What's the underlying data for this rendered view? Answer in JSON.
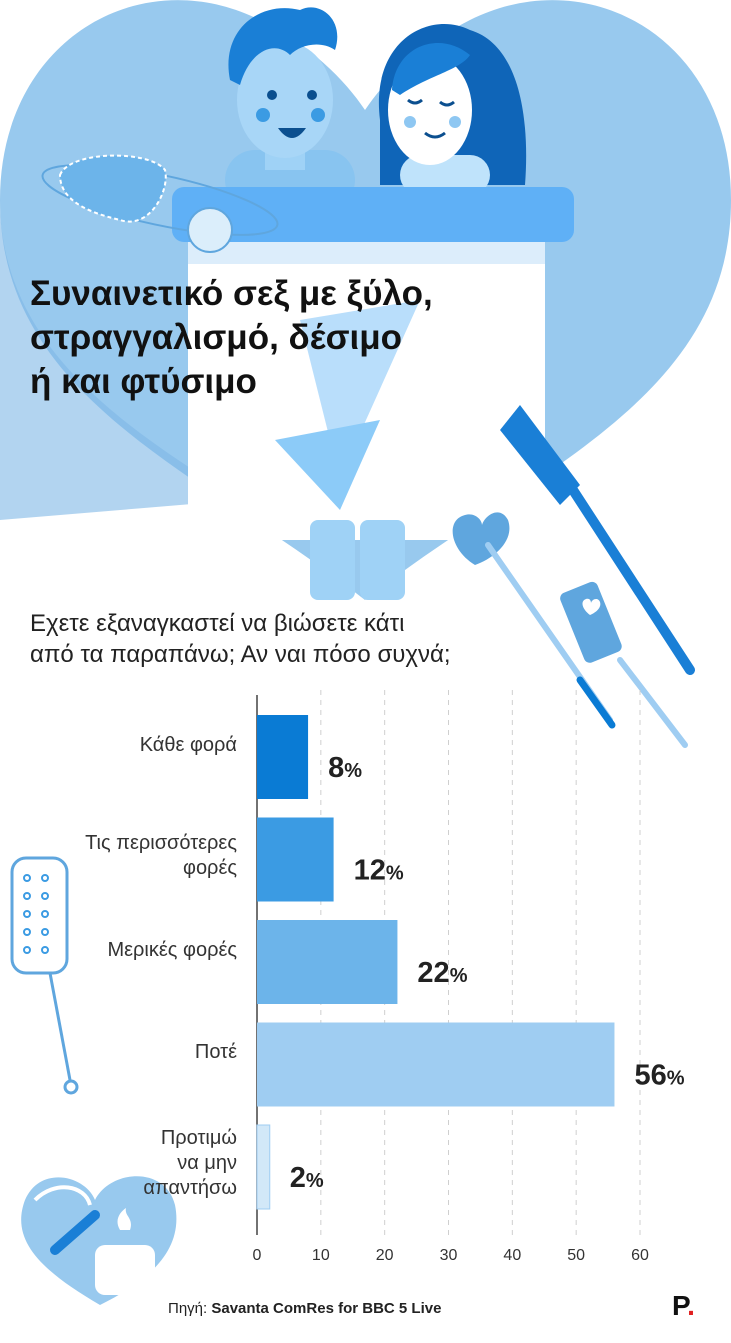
{
  "title_lines": [
    "Συναινετικό σεξ με ξύλο,",
    "στραγγαλισμό, δέσιμο",
    "ή και φτύσιμο"
  ],
  "question_lines": [
    "Εχετε εξαναγκαστεί να βιώσετε κάτι",
    "από τα παραπάνω; Αν ναι πόσο συχνά;"
  ],
  "chart_data": {
    "type": "bar",
    "orientation": "horizontal",
    "categories": [
      [
        "Κάθε φορά"
      ],
      [
        "Τις περισσότερες",
        "φορές"
      ],
      [
        "Μερικές φορές"
      ],
      [
        "Ποτέ"
      ],
      [
        "Προτιμώ",
        "να μην",
        "απαντήσω"
      ]
    ],
    "values": [
      8,
      12,
      22,
      56,
      2
    ],
    "value_suffix": "%",
    "bar_colors": [
      "#0a7bd4",
      "#3b9be3",
      "#6cb4ea",
      "#9fcdf2",
      "#d2e8f8"
    ],
    "xlim": [
      0,
      60
    ],
    "xticks": [
      0,
      10,
      20,
      30,
      40,
      50,
      60
    ],
    "grid": true
  },
  "source": {
    "label": "Πηγή:",
    "text": "Savanta ComRes for BBC 5 Live"
  },
  "logo": {
    "letter": "P",
    "dot": "."
  },
  "colors": {
    "heart": "#98c9ee",
    "heart_dark": "#5fa6de",
    "skin": "#9fd2f6",
    "hair": "#1a7fd6",
    "text": "#222222"
  }
}
